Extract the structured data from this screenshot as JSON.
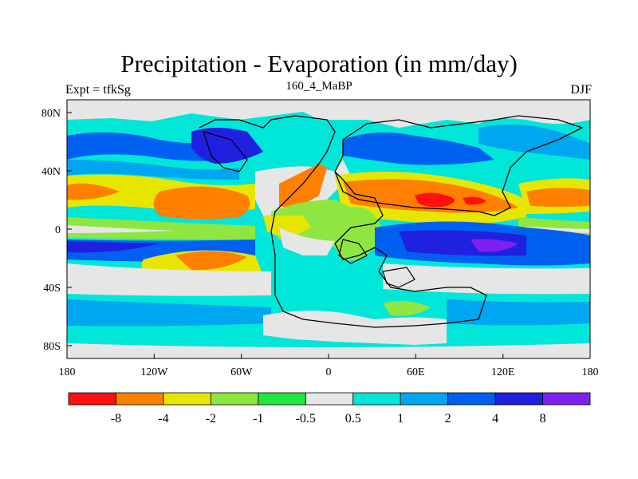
{
  "title": "Precipitation - Evaporation (in mm/day)",
  "subtitle_left": "Expt = tfkSg",
  "subtitle_center": "160_4_MaBP",
  "subtitle_right": "DJF",
  "map": {
    "type": "global-contour-map",
    "lon_range": [
      -180,
      180
    ],
    "lat_range": [
      -90,
      90
    ],
    "lon_ticks": [
      {
        "value": -180,
        "label": "180"
      },
      {
        "value": -120,
        "label": "120W"
      },
      {
        "value": -60,
        "label": "60W"
      },
      {
        "value": 0,
        "label": "0"
      },
      {
        "value": 60,
        "label": "60E"
      },
      {
        "value": 120,
        "label": "120E"
      },
      {
        "value": 180,
        "label": "180"
      }
    ],
    "lat_ticks": [
      {
        "value": 80,
        "label": "80N"
      },
      {
        "value": 40,
        "label": "40N"
      },
      {
        "value": 0,
        "label": "0"
      },
      {
        "value": -40,
        "label": "40S"
      },
      {
        "value": -80,
        "label": "80S"
      }
    ]
  },
  "colorbar": {
    "colors": [
      "#ff1010",
      "#ff8000",
      "#e6e600",
      "#90e640",
      "#20e640",
      "#e6e6e6",
      "#00e6d8",
      "#00a6f0",
      "#0060f0",
      "#2020e0",
      "#8020f0"
    ],
    "labels": [
      "-8",
      "-4",
      "-2",
      "-1",
      "-0.5",
      "0.5",
      "1",
      "2",
      "4",
      "8"
    ]
  }
}
